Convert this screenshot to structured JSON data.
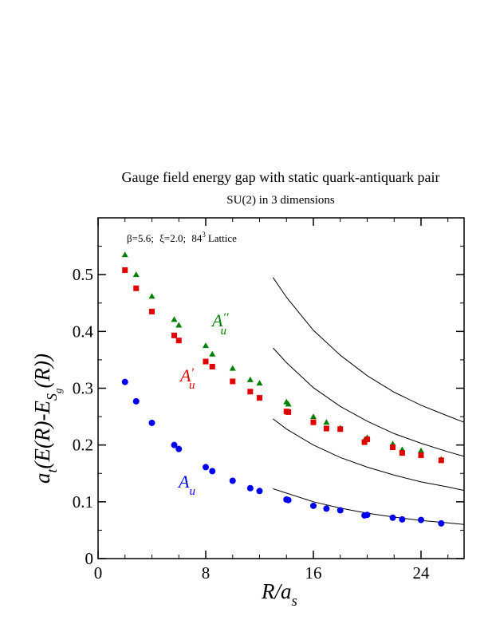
{
  "chart_data": {
    "type": "scatter",
    "title": "Gauge field energy gap with static quark-antiquark pair",
    "subtitle": "SU(2) in 3 dimensions",
    "annotation": {
      "beta": "β=5.6;",
      "xi": "ξ=2.0;",
      "lattice_base": "84",
      "lattice_exp": "3",
      "lattice_word": "Lattice"
    },
    "xlabel": {
      "main": "R/a",
      "sub": "s"
    },
    "ylabel": {
      "main": "a",
      "sub1": "t",
      "mid": "(E(R)-E",
      "sub2": "S",
      "sub3": "g",
      "end": "(R))"
    },
    "xlim": [
      0,
      27.2
    ],
    "ylim": [
      0,
      0.6
    ],
    "xticks": [
      0,
      8,
      16,
      24
    ],
    "xtick_labels": [
      "0",
      "8",
      "16",
      "24"
    ],
    "yticks": [
      0,
      0.1,
      0.2,
      0.3,
      0.4,
      0.5
    ],
    "ytick_labels": [
      "0",
      "0.1",
      "0.2",
      "0.3",
      "0.4",
      "0.5"
    ],
    "grid": false,
    "series": [
      {
        "name": "A_u''",
        "label_main": "A",
        "label_sub": "u",
        "label_prime": "′′",
        "color": "#008000",
        "marker": "triangle",
        "points": [
          [
            2,
            0.535
          ],
          [
            2.83,
            0.5
          ],
          [
            4,
            0.462
          ],
          [
            5.66,
            0.421
          ],
          [
            6,
            0.411
          ],
          [
            8,
            0.375
          ],
          [
            8.49,
            0.36
          ],
          [
            10,
            0.335
          ],
          [
            11.31,
            0.315
          ],
          [
            12,
            0.309
          ],
          [
            14,
            0.276
          ],
          [
            14.14,
            0.272
          ],
          [
            16,
            0.25
          ],
          [
            16.97,
            0.24
          ],
          [
            18,
            0.23
          ],
          [
            19.8,
            0.209
          ],
          [
            20,
            0.213
          ],
          [
            21.9,
            0.202
          ],
          [
            22.6,
            0.192
          ],
          [
            24,
            0.19
          ],
          [
            25.5,
            0.175
          ]
        ]
      },
      {
        "name": "A_u'",
        "label_main": "A",
        "label_sub": "u",
        "label_prime": "′",
        "color": "#e00000",
        "marker": "square",
        "points": [
          [
            2,
            0.508
          ],
          [
            2.83,
            0.476
          ],
          [
            4,
            0.435
          ],
          [
            5.66,
            0.393
          ],
          [
            6,
            0.384
          ],
          [
            8,
            0.347
          ],
          [
            8.49,
            0.338
          ],
          [
            10,
            0.312
          ],
          [
            11.31,
            0.294
          ],
          [
            12,
            0.283
          ],
          [
            14,
            0.259
          ],
          [
            14.14,
            0.258
          ],
          [
            16,
            0.24
          ],
          [
            16.97,
            0.229
          ],
          [
            18,
            0.228
          ],
          [
            19.8,
            0.205
          ],
          [
            20,
            0.21
          ],
          [
            21.9,
            0.196
          ],
          [
            22.6,
            0.186
          ],
          [
            24,
            0.182
          ],
          [
            25.5,
            0.173
          ]
        ]
      },
      {
        "name": "A_u",
        "label_main": "A",
        "label_sub": "u",
        "label_prime": "",
        "color": "#0000ee",
        "marker": "circle",
        "points": [
          [
            2,
            0.311
          ],
          [
            2.83,
            0.277
          ],
          [
            4,
            0.239
          ],
          [
            5.66,
            0.2
          ],
          [
            6,
            0.193
          ],
          [
            8,
            0.161
          ],
          [
            8.49,
            0.154
          ],
          [
            10,
            0.137
          ],
          [
            11.31,
            0.124
          ],
          [
            12,
            0.119
          ],
          [
            14,
            0.104
          ],
          [
            14.14,
            0.103
          ],
          [
            16,
            0.093
          ],
          [
            16.97,
            0.088
          ],
          [
            18,
            0.085
          ],
          [
            19.8,
            0.076
          ],
          [
            20,
            0.077
          ],
          [
            21.9,
            0.072
          ],
          [
            22.6,
            0.069
          ],
          [
            24,
            0.068
          ],
          [
            25.5,
            0.062
          ]
        ]
      }
    ],
    "curves": [
      {
        "points": [
          [
            13.0,
            0.123
          ],
          [
            16,
            0.1
          ],
          [
            18,
            0.089
          ],
          [
            20,
            0.08
          ],
          [
            22,
            0.073
          ],
          [
            24,
            0.067
          ],
          [
            26,
            0.063
          ],
          [
            27.2,
            0.06
          ]
        ]
      },
      {
        "points": [
          [
            13.0,
            0.246
          ],
          [
            14,
            0.228
          ],
          [
            16,
            0.2
          ],
          [
            18,
            0.178
          ],
          [
            20,
            0.161
          ],
          [
            22,
            0.147
          ],
          [
            24,
            0.135
          ],
          [
            26,
            0.126
          ],
          [
            27.2,
            0.12
          ]
        ]
      },
      {
        "points": [
          [
            13.0,
            0.371
          ],
          [
            14,
            0.345
          ],
          [
            16,
            0.301
          ],
          [
            18,
            0.268
          ],
          [
            20,
            0.242
          ],
          [
            22,
            0.22
          ],
          [
            24,
            0.203
          ],
          [
            26,
            0.188
          ],
          [
            27.2,
            0.18
          ]
        ]
      },
      {
        "points": [
          [
            13.0,
            0.495
          ],
          [
            14,
            0.46
          ],
          [
            16,
            0.402
          ],
          [
            18,
            0.358
          ],
          [
            20,
            0.322
          ],
          [
            22,
            0.293
          ],
          [
            24,
            0.27
          ],
          [
            26,
            0.251
          ],
          [
            27.2,
            0.24
          ]
        ]
      }
    ]
  }
}
